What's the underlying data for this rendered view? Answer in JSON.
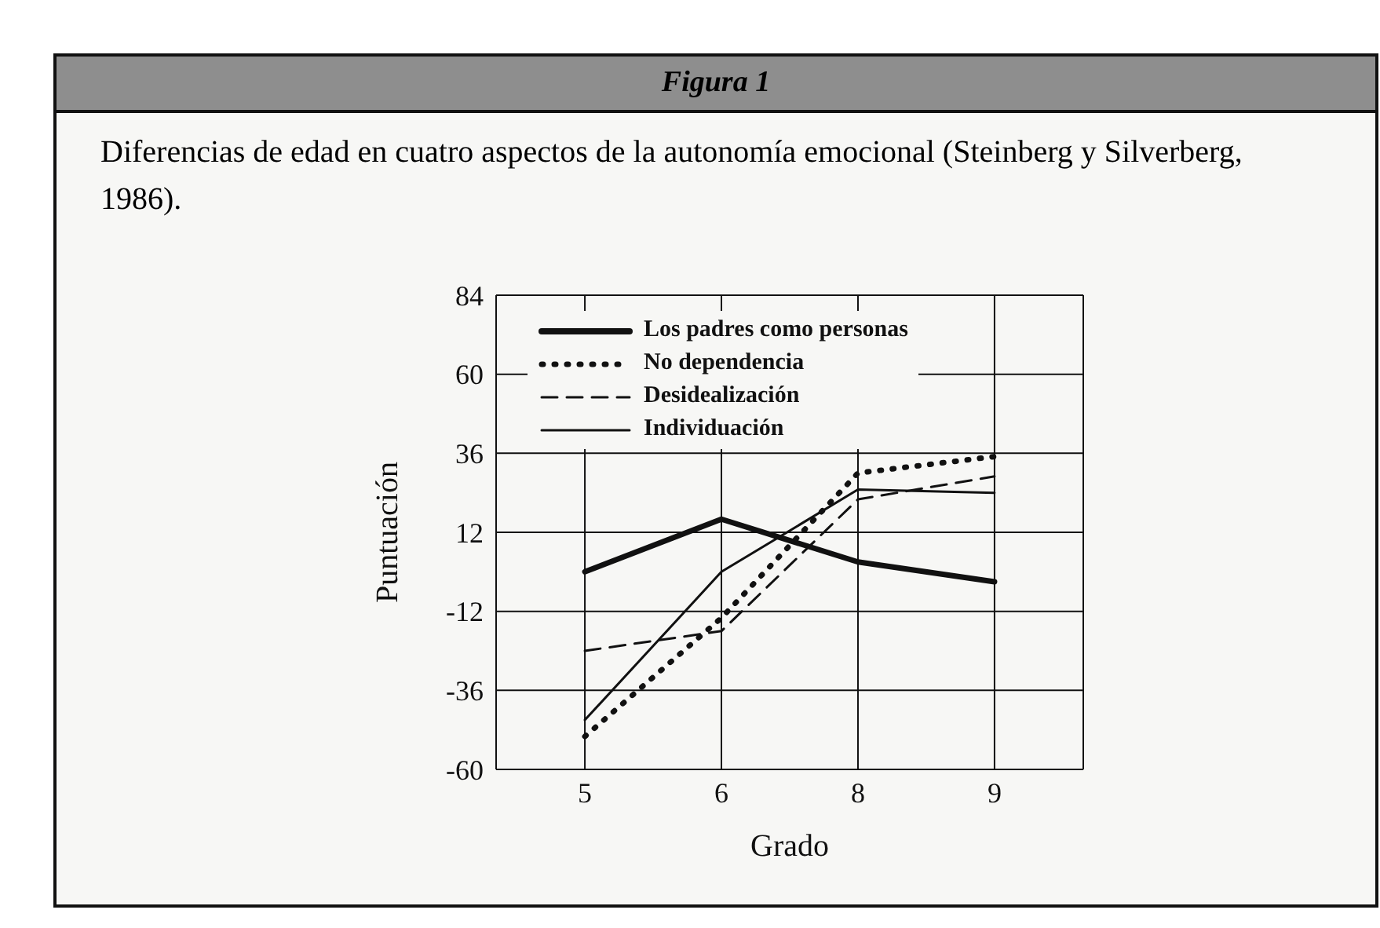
{
  "chart_data": {
    "type": "line",
    "title": "Figura 1",
    "subtitle": "Diferencias de edad en cuatro aspectos de la autonomía emocional (Steinberg y Silverberg, 1986).",
    "xlabel": "Grado",
    "ylabel": "Puntuación",
    "categories": [
      "5",
      "6",
      "8",
      "9"
    ],
    "series": [
      {
        "name": "Los padres como personas",
        "color": "#111111",
        "line_style": "solid",
        "values": [
          0,
          16,
          3,
          -3
        ]
      },
      {
        "name": "No dependencia",
        "color": "#111111",
        "line_style": "dotted",
        "values": [
          -50,
          -14,
          30,
          35
        ]
      },
      {
        "name": "Desidealización",
        "color": "#111111",
        "line_style": "dashed",
        "values": [
          -24,
          -18,
          22,
          29
        ]
      },
      {
        "name": "Individuación",
        "color": "#111111",
        "line_style": "solid",
        "values": [
          -45,
          0,
          25,
          24
        ]
      }
    ],
    "ylim": [
      -60,
      84
    ],
    "yticks": [
      -60,
      -36,
      -12,
      12,
      36,
      60,
      84
    ],
    "grid": true,
    "legend": "top left",
    "marker": "none"
  }
}
